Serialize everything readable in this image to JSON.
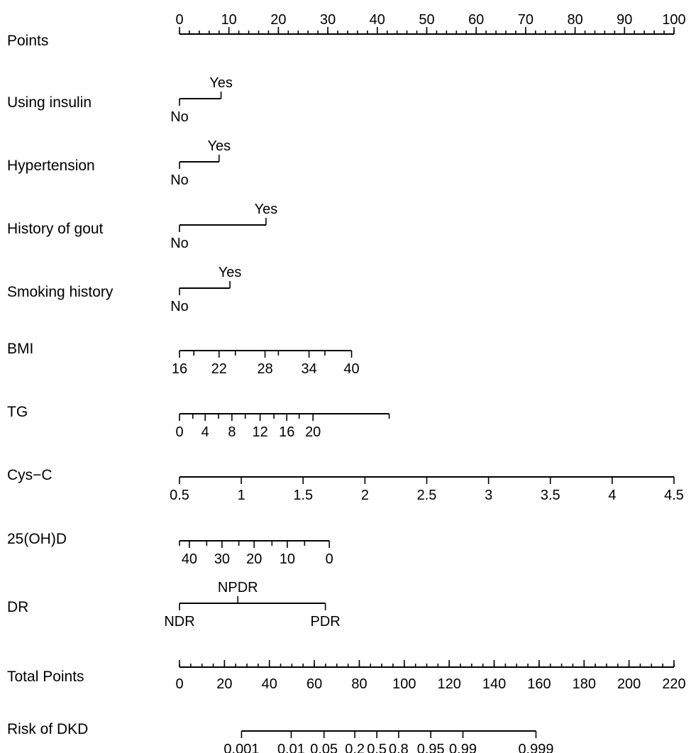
{
  "chart_data": {
    "type": "nomogram",
    "rows": [
      {
        "id": "points",
        "label": "Points",
        "kind": "points_axis",
        "range": [
          0,
          100
        ],
        "ticks": [
          {
            "value": 0,
            "label": "0"
          },
          {
            "value": 10,
            "label": "10"
          },
          {
            "value": 20,
            "label": "20"
          },
          {
            "value": 30,
            "label": "30"
          },
          {
            "value": 40,
            "label": "40"
          },
          {
            "value": 50,
            "label": "50"
          },
          {
            "value": 60,
            "label": "60"
          },
          {
            "value": 70,
            "label": "70"
          },
          {
            "value": 80,
            "label": "80"
          },
          {
            "value": 90,
            "label": "90"
          },
          {
            "value": 100,
            "label": "100"
          }
        ],
        "minor_step": 2
      },
      {
        "id": "using-insulin",
        "label": "Using insulin",
        "kind": "categorical",
        "levels": [
          {
            "label": "No",
            "points": 0,
            "pos": "below"
          },
          {
            "label": "Yes",
            "points": 8.4,
            "pos": "above"
          }
        ]
      },
      {
        "id": "hypertension",
        "label": "Hypertension",
        "kind": "categorical",
        "levels": [
          {
            "label": "No",
            "points": 0,
            "pos": "below"
          },
          {
            "label": "Yes",
            "points": 8.0,
            "pos": "above"
          }
        ]
      },
      {
        "id": "history-of-gout",
        "label": "History of gout",
        "kind": "categorical",
        "levels": [
          {
            "label": "No",
            "points": 0,
            "pos": "below"
          },
          {
            "label": "Yes",
            "points": 17.5,
            "pos": "above"
          }
        ]
      },
      {
        "id": "smoking-history",
        "label": "Smoking history",
        "kind": "categorical",
        "levels": [
          {
            "label": "No",
            "points": 0,
            "pos": "below"
          },
          {
            "label": "Yes",
            "points": 10.2,
            "pos": "above"
          }
        ]
      },
      {
        "id": "bmi",
        "label": "BMI",
        "kind": "continuous",
        "ticks": [
          {
            "value": 16,
            "points": 0,
            "label": "16"
          },
          {
            "value": 19,
            "points": 2.9
          },
          {
            "value": 22,
            "points": 8.0,
            "label": "22"
          },
          {
            "value": 25,
            "points": 11.3
          },
          {
            "value": 28,
            "points": 17.3,
            "label": "28"
          },
          {
            "value": 31,
            "points": 20.0
          },
          {
            "value": 34,
            "points": 26.2,
            "label": "34"
          },
          {
            "value": 37,
            "points": 29.4
          },
          {
            "value": 40,
            "points": 34.8,
            "label": "40"
          }
        ]
      },
      {
        "id": "tg",
        "label": "TG",
        "kind": "continuous",
        "ticks": [
          {
            "value": 0,
            "points": 0,
            "label": "0"
          },
          {
            "value": 2,
            "points": 2.7
          },
          {
            "value": 4,
            "points": 5.2,
            "label": "4"
          },
          {
            "value": 6,
            "points": 7.9
          },
          {
            "value": 8,
            "points": 10.6,
            "label": "8"
          },
          {
            "value": 10,
            "points": 13.3
          },
          {
            "value": 12,
            "points": 16.3,
            "label": "12"
          },
          {
            "value": 14,
            "points": 19.1
          },
          {
            "value": 16,
            "points": 21.7,
            "label": "16"
          },
          {
            "value": 18,
            "points": 24.2
          },
          {
            "value": 20,
            "points": 27.0,
            "label": "20"
          },
          {
            "value": 22,
            "points": 42.4
          }
        ]
      },
      {
        "id": "cys-c",
        "label": "Cys−C",
        "kind": "continuous",
        "ticks": [
          {
            "value": 0.5,
            "points": 0,
            "label": "0.5"
          },
          {
            "value": 1,
            "points": 12.5,
            "label": "1"
          },
          {
            "value": 1.5,
            "points": 25.0,
            "label": "1.5"
          },
          {
            "value": 2,
            "points": 37.5,
            "label": "2"
          },
          {
            "value": 2.5,
            "points": 50.0,
            "label": "2.5"
          },
          {
            "value": 3,
            "points": 62.5,
            "label": "3"
          },
          {
            "value": 3.5,
            "points": 75.0,
            "label": "3.5"
          },
          {
            "value": 4,
            "points": 87.5,
            "label": "4"
          },
          {
            "value": 4.5,
            "points": 100,
            "label": "4.5"
          }
        ]
      },
      {
        "id": "25ohd",
        "label": "25(OH)D",
        "kind": "continuous",
        "ticks": [
          {
            "value": 45,
            "points": 0
          },
          {
            "value": 40,
            "points": 2.0,
            "label": "40"
          },
          {
            "value": 35,
            "points": 5.5
          },
          {
            "value": 30,
            "points": 8.6,
            "label": "30"
          },
          {
            "value": 25,
            "points": 12.0
          },
          {
            "value": 20,
            "points": 15.1,
            "label": "20"
          },
          {
            "value": 15,
            "points": 18.7
          },
          {
            "value": 10,
            "points": 21.8,
            "label": "10"
          },
          {
            "value": 5,
            "points": 25.3
          },
          {
            "value": 0,
            "points": 30.3,
            "label": "0"
          }
        ]
      },
      {
        "id": "dr",
        "label": "DR",
        "kind": "categorical",
        "levels": [
          {
            "label": "NDR",
            "points": 0,
            "pos": "below"
          },
          {
            "label": "NPDR",
            "points": 11.8,
            "pos": "above"
          },
          {
            "label": "PDR",
            "points": 29.5,
            "pos": "below"
          }
        ]
      },
      {
        "id": "total-points",
        "label": "Total Points",
        "kind": "total_axis",
        "range": [
          0,
          220
        ],
        "ticks": [
          {
            "value": 0,
            "label": "0"
          },
          {
            "value": 20,
            "label": "20"
          },
          {
            "value": 40,
            "label": "40"
          },
          {
            "value": 60,
            "label": "60"
          },
          {
            "value": 80,
            "label": "80"
          },
          {
            "value": 100,
            "label": "100"
          },
          {
            "value": 120,
            "label": "120"
          },
          {
            "value": 140,
            "label": "140"
          },
          {
            "value": 160,
            "label": "160"
          },
          {
            "value": 180,
            "label": "180"
          },
          {
            "value": 200,
            "label": "200"
          },
          {
            "value": 220,
            "label": "220"
          }
        ],
        "minor_step": 5
      },
      {
        "id": "risk-of-dkd",
        "label": "Risk of DKD",
        "kind": "risk_axis",
        "ticks": [
          {
            "value": 0.001,
            "total": 27.6,
            "label": "0.001"
          },
          {
            "value": 0.01,
            "total": 49.7,
            "label": "0.01"
          },
          {
            "value": 0.05,
            "total": 64.3,
            "label": "0.05"
          },
          {
            "value": 0.2,
            "total": 78.0,
            "label": "0.2"
          },
          {
            "value": 0.5,
            "total": 87.8,
            "label": "0.5"
          },
          {
            "value": 0.8,
            "total": 97.5,
            "label": "0.8"
          },
          {
            "value": 0.95,
            "total": 111.8,
            "label": "0.95"
          },
          {
            "value": 0.99,
            "total": 126.1,
            "label": "0.99"
          },
          {
            "value": 0.999,
            "total": 158.6,
            "label": "0.999"
          }
        ]
      }
    ]
  }
}
